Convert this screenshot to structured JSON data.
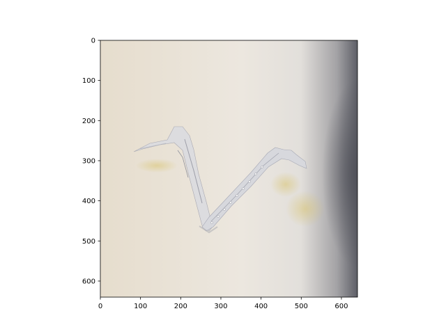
{
  "chart_data": {
    "type": "image",
    "title": "",
    "xlabel": "",
    "ylabel": "",
    "x_ticks": [
      0,
      100,
      200,
      300,
      400,
      500,
      600
    ],
    "y_ticks": [
      0,
      100,
      200,
      300,
      400,
      500,
      600
    ],
    "xlim": [
      0,
      640
    ],
    "ylim": [
      640,
      0
    ],
    "y_inverted": true,
    "image_content": "torn-paper-strip-v-shape",
    "colors": {
      "paper_bg": "#e8e0d2",
      "shadow": "#5a5b63",
      "strip": "#d9d9dc",
      "stain": "#d8c27a"
    }
  }
}
